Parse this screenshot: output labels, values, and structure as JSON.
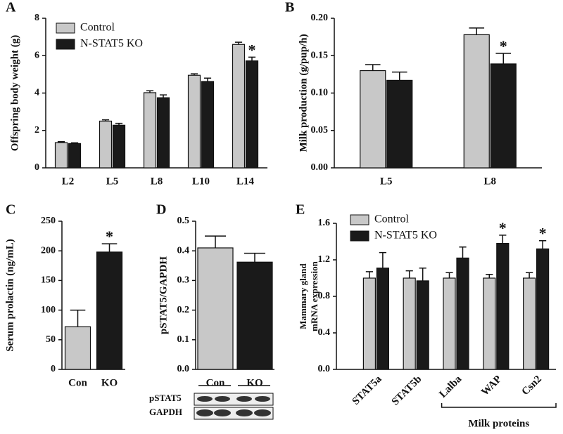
{
  "chart_data": [
    {
      "type": "bar",
      "panel": "A",
      "ylabel": "Offspring body weight (g)",
      "categories": [
        "L2",
        "L5",
        "L8",
        "L10",
        "L14"
      ],
      "series": [
        {
          "name": "Control",
          "color": "#c8c8c8",
          "values": [
            1.35,
            2.5,
            4.02,
            4.95,
            6.6
          ],
          "errors": [
            0.05,
            0.07,
            0.1,
            0.08,
            0.12
          ],
          "significance": [
            null,
            null,
            null,
            null,
            null
          ]
        },
        {
          "name": "N-STAT5 KO",
          "color": "#1a1a1a",
          "values": [
            1.3,
            2.28,
            3.75,
            4.62,
            5.72
          ],
          "errors": [
            0.04,
            0.1,
            0.15,
            0.18,
            0.2
          ],
          "significance": [
            null,
            null,
            null,
            null,
            "*"
          ]
        }
      ],
      "ylim": [
        0,
        8
      ],
      "yticks": [
        0,
        2,
        4,
        6,
        8
      ],
      "legend": "upper left"
    },
    {
      "type": "bar",
      "panel": "B",
      "ylabel": "Milk production (g/pup/h)",
      "categories": [
        "L5",
        "L8"
      ],
      "series": [
        {
          "name": "Control",
          "color": "#c8c8c8",
          "values": [
            0.13,
            0.178
          ],
          "errors": [
            0.008,
            0.009
          ],
          "significance": [
            null,
            null
          ]
        },
        {
          "name": "N-STAT5 KO",
          "color": "#1a1a1a",
          "values": [
            0.117,
            0.139
          ],
          "errors": [
            0.011,
            0.014
          ],
          "significance": [
            null,
            "*"
          ]
        }
      ],
      "ylim": [
        0,
        0.2
      ],
      "yticks": [
        {
          "value": 0,
          "label": "0.00"
        },
        {
          "value": 0.05,
          "label": "0.05"
        },
        {
          "value": 0.1,
          "label": "0.10"
        },
        {
          "value": 0.15,
          "label": "0.15"
        },
        {
          "value": 0.2,
          "label": "0.20"
        }
      ]
    },
    {
      "type": "bar",
      "panel": "C",
      "ylabel": "Serum prolactin (ng/mL)",
      "categories": [
        "Con",
        "KO"
      ],
      "values": [
        72,
        198
      ],
      "errors": [
        28,
        14
      ],
      "significance": [
        null,
        "*"
      ],
      "colors": [
        "#c8c8c8",
        "#1a1a1a"
      ],
      "ylim": [
        0,
        250
      ],
      "yticks": [
        0,
        50,
        100,
        150,
        200,
        250
      ]
    },
    {
      "type": "bar",
      "panel": "D",
      "ylabel": "pSTAT5/GAPDH",
      "categories": [
        "Con",
        "KO"
      ],
      "values": [
        0.41,
        0.362
      ],
      "errors": [
        0.04,
        0.03
      ],
      "significance": [
        null,
        null
      ],
      "colors": [
        "#c8c8c8",
        "#1a1a1a"
      ],
      "ylim": [
        0,
        0.5
      ],
      "yticks": [
        {
          "value": 0,
          "label": "0.0"
        },
        {
          "value": 0.1,
          "label": "0.1"
        },
        {
          "value": 0.2,
          "label": "0.2"
        },
        {
          "value": 0.3,
          "label": "0.3"
        },
        {
          "value": 0.4,
          "label": "0.4"
        },
        {
          "value": 0.5,
          "label": "0.5"
        }
      ],
      "blot_labels": [
        "pSTAT5",
        "GAPDH"
      ]
    },
    {
      "type": "bar",
      "panel": "E",
      "ylabel": [
        "Mammary gland",
        "mRNA expression"
      ],
      "categories": [
        "STAT5a",
        "STAT5b",
        "Lalba",
        "WAP",
        "Csn2"
      ],
      "series": [
        {
          "name": "Control",
          "color": "#c8c8c8",
          "values": [
            1.0,
            1.0,
            1.0,
            1.0,
            1.0
          ],
          "errors": [
            0.07,
            0.08,
            0.06,
            0.04,
            0.06
          ],
          "significance": [
            null,
            null,
            null,
            null,
            null
          ]
        },
        {
          "name": "N-STAT5 KO",
          "color": "#1a1a1a",
          "values": [
            1.11,
            0.97,
            1.22,
            1.38,
            1.32
          ],
          "errors": [
            0.17,
            0.14,
            0.12,
            0.09,
            0.09
          ],
          "significance": [
            null,
            null,
            null,
            "*",
            "*"
          ]
        }
      ],
      "ylim": [
        0,
        1.6
      ],
      "yticks": [
        {
          "value": 0,
          "label": "0.0"
        },
        {
          "value": 0.4,
          "label": "0.4"
        },
        {
          "value": 0.8,
          "label": "0.8"
        },
        {
          "value": 1.2,
          "label": "1.2"
        },
        {
          "value": 1.6,
          "label": "1.6"
        }
      ],
      "legend": "upper left",
      "group_label": "Milk proteins"
    }
  ]
}
